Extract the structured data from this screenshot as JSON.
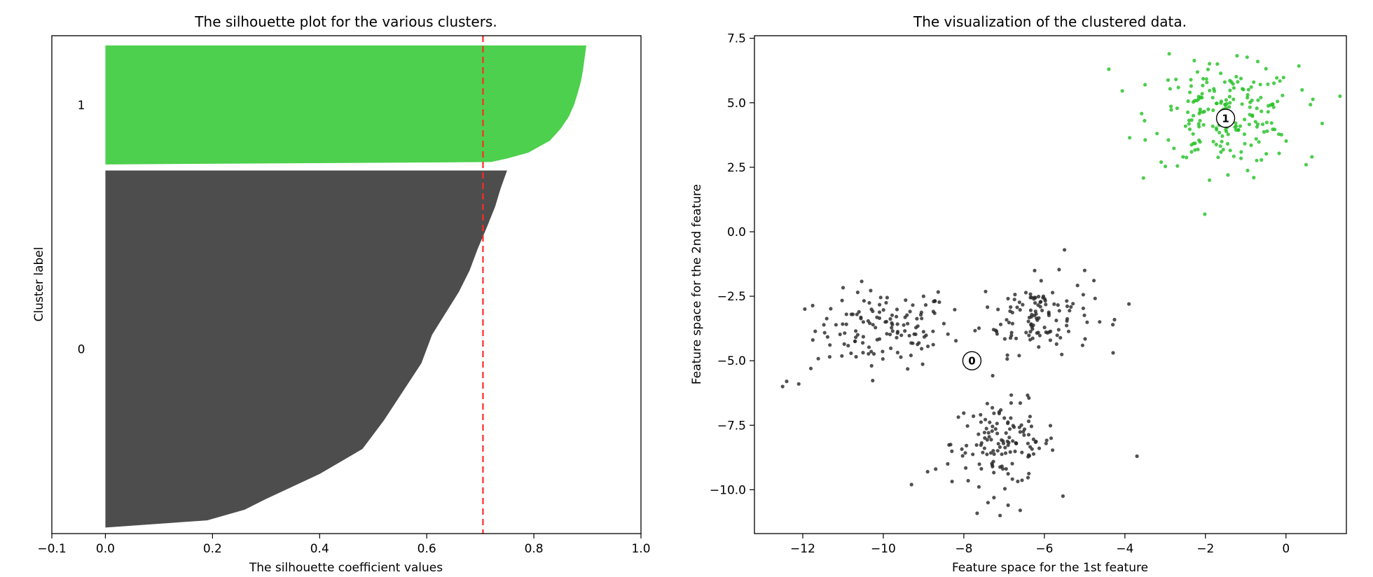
{
  "chart_data": [
    {
      "type": "area",
      "title": "The silhouette plot for the various clusters.",
      "xlabel": "The silhouette coefficient values",
      "ylabel": "Cluster label",
      "xlim": [
        -0.1,
        1.0
      ],
      "xticks": [
        -0.1,
        0.0,
        0.2,
        0.4,
        0.6,
        0.8,
        1.0
      ],
      "xtick_labels": [
        "−0.1",
        "0.0",
        "0.2",
        "0.4",
        "0.6",
        "0.8",
        "1.0"
      ],
      "ylim": [
        0,
        820
      ],
      "avg_silhouette": 0.705,
      "avg_line_color": "#ff2a2a",
      "grid": false,
      "clusters": [
        {
          "label": "0",
          "color": "#4d4d4d",
          "y_lower": 10,
          "y_upper": 598,
          "sorted_values": [
            [
              0.0,
              0.0
            ],
            [
              0.02,
              0.19
            ],
            [
              0.05,
              0.26
            ],
            [
              0.08,
              0.3
            ],
            [
              0.15,
              0.4
            ],
            [
              0.22,
              0.48
            ],
            [
              0.3,
              0.52
            ],
            [
              0.38,
              0.555
            ],
            [
              0.46,
              0.59
            ],
            [
              0.54,
              0.61
            ],
            [
              0.6,
              0.635
            ],
            [
              0.66,
              0.66
            ],
            [
              0.72,
              0.68
            ],
            [
              0.78,
              0.695
            ],
            [
              0.84,
              0.712
            ],
            [
              0.9,
              0.728
            ],
            [
              0.95,
              0.738
            ],
            [
              1.0,
              0.75
            ]
          ]
        },
        {
          "label": "1",
          "color": "#4dd04d",
          "y_lower": 608,
          "y_upper": 804,
          "sorted_values": [
            [
              0.0,
              0.0
            ],
            [
              0.02,
              0.72
            ],
            [
              0.05,
              0.75
            ],
            [
              0.1,
              0.79
            ],
            [
              0.2,
              0.83
            ],
            [
              0.3,
              0.85
            ],
            [
              0.4,
              0.865
            ],
            [
              0.5,
              0.875
            ],
            [
              0.6,
              0.882
            ],
            [
              0.7,
              0.888
            ],
            [
              0.8,
              0.892
            ],
            [
              0.9,
              0.895
            ],
            [
              1.0,
              0.898
            ]
          ]
        }
      ]
    },
    {
      "type": "scatter",
      "title": "The visualization of the clustered data.",
      "xlabel": "Feature space for the 1st feature",
      "ylabel": "Feature space for the 2nd feature",
      "xlim": [
        -13.2,
        1.5
      ],
      "ylim": [
        -11.7,
        7.6
      ],
      "xticks": [
        -12,
        -10,
        -8,
        -6,
        -4,
        -2,
        0
      ],
      "xtick_labels": [
        "−12",
        "−10",
        "−8",
        "−6",
        "−4",
        "−2",
        "0"
      ],
      "yticks": [
        -10.0,
        -7.5,
        -5.0,
        -2.5,
        0.0,
        2.5,
        5.0,
        7.5
      ],
      "ytick_labels": [
        "−10.0",
        "−7.5",
        "−5.0",
        "−2.5",
        "0.0",
        "2.5",
        "5.0",
        "7.5"
      ],
      "grid": false,
      "centers": [
        {
          "label": "0",
          "x": -7.8,
          "y": -5.0
        },
        {
          "label": "1",
          "x": -1.5,
          "y": 4.4
        }
      ],
      "clusters": [
        {
          "label": "0",
          "color": "#262626",
          "blobs": [
            {
              "cx": -10.0,
              "cy": -3.8,
              "sx": 0.85,
              "sy": 0.75,
              "n": 130
            },
            {
              "cx": -6.2,
              "cy": -3.2,
              "sx": 0.7,
              "sy": 0.75,
              "n": 120
            },
            {
              "cx": -7.0,
              "cy": -8.2,
              "sx": 0.65,
              "sy": 0.8,
              "n": 130
            }
          ],
          "points": [
            [
              -12.5,
              -6.0
            ],
            [
              -12.4,
              -5.8
            ],
            [
              -12.1,
              -5.9
            ],
            [
              -11.8,
              -5.3
            ],
            [
              -9.3,
              -9.8
            ],
            [
              -8.7,
              -9.2
            ],
            [
              -3.7,
              -8.7
            ],
            [
              -3.9,
              -2.8
            ],
            [
              -4.3,
              -3.6
            ],
            [
              -5.5,
              -0.7
            ],
            [
              -5.0,
              -1.5
            ],
            [
              -7.4,
              -10.5
            ],
            [
              -6.6,
              -10.8
            ],
            [
              -6.9,
              -10.6
            ],
            [
              -7.1,
              -11.0
            ],
            [
              -8.4,
              -9.0
            ],
            [
              -8.9,
              -9.3
            ],
            [
              -9.0,
              -2.5
            ]
          ]
        },
        {
          "label": "1",
          "color": "#22c022",
          "blobs": [
            {
              "cx": -1.5,
              "cy": 4.5,
              "sx": 0.9,
              "sy": 0.95,
              "n": 200
            }
          ],
          "points": [
            [
              -4.4,
              6.3
            ],
            [
              0.9,
              4.2
            ],
            [
              -1.9,
              2.0
            ],
            [
              -0.8,
              2.1
            ],
            [
              0.5,
              2.6
            ],
            [
              -3.5,
              5.7
            ],
            [
              -2.9,
              6.9
            ],
            [
              -0.7,
              6.6
            ],
            [
              0.4,
              5.5
            ],
            [
              -3.1,
              2.7
            ]
          ]
        }
      ]
    }
  ]
}
